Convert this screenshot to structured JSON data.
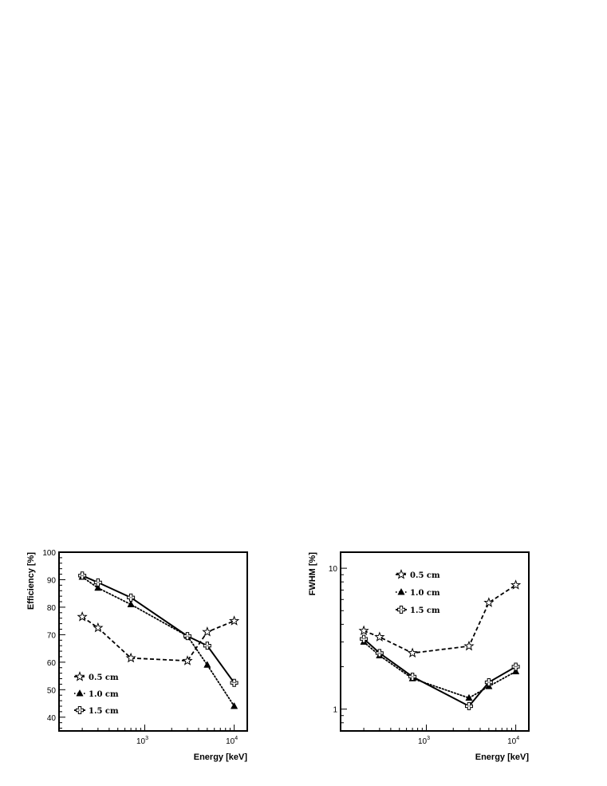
{
  "chart_data": [
    {
      "type": "line",
      "id": "efficiency",
      "xlabel": "Energy [keV]",
      "ylabel": "Efficiency [%]",
      "xscale": "log",
      "yscale": "linear",
      "xlim": [
        110,
        14000
      ],
      "ylim": [
        35,
        100
      ],
      "xticks": [
        {
          "value": 1000,
          "base": "10",
          "exp": "3"
        },
        {
          "value": 10000,
          "base": "10",
          "exp": "4"
        }
      ],
      "yticks": [
        40,
        50,
        60,
        70,
        80,
        90,
        100
      ],
      "legend_position": "bottom-left",
      "series": [
        {
          "name": "0.5 cm",
          "marker": "star-open",
          "dash": "dashed",
          "x": [
            200,
            300,
            700,
            3000,
            5000,
            10000
          ],
          "y": [
            76.5,
            72.5,
            61.5,
            60.5,
            71,
            75
          ]
        },
        {
          "name": "1.0 cm",
          "marker": "triangle-filled",
          "dash": "dotted",
          "x": [
            200,
            300,
            700,
            3000,
            5000,
            10000
          ],
          "y": [
            91,
            87,
            81,
            69.5,
            59,
            44
          ]
        },
        {
          "name": "1.5 cm",
          "marker": "cross-open",
          "dash": "solid",
          "x": [
            200,
            300,
            700,
            3000,
            5000,
            10000
          ],
          "y": [
            91.5,
            89,
            83.5,
            69.5,
            66,
            52.5
          ]
        }
      ]
    },
    {
      "type": "line",
      "id": "fwhm",
      "xlabel": "Energy [keV]",
      "ylabel": "FWHM [%]",
      "xscale": "log",
      "yscale": "log",
      "xlim": [
        110,
        14000
      ],
      "ylim": [
        0.7,
        13
      ],
      "xticks": [
        {
          "value": 1000,
          "base": "10",
          "exp": "3"
        },
        {
          "value": 10000,
          "base": "10",
          "exp": "4"
        }
      ],
      "yticks": [
        {
          "value": 1,
          "label": "1"
        },
        {
          "value": 10,
          "label": "10"
        }
      ],
      "legend_position": "top-left",
      "series": [
        {
          "name": "0.5 cm",
          "marker": "star-open",
          "dash": "dashed",
          "x": [
            200,
            300,
            700,
            3000,
            5000,
            10000
          ],
          "y": [
            3.6,
            3.25,
            2.5,
            2.8,
            5.7,
            7.6
          ]
        },
        {
          "name": "1.0 cm",
          "marker": "triangle-filled",
          "dash": "dotted",
          "x": [
            200,
            300,
            700,
            3000,
            5000,
            10000
          ],
          "y": [
            3.0,
            2.4,
            1.65,
            1.2,
            1.45,
            1.85
          ]
        },
        {
          "name": "1.5 cm",
          "marker": "cross-open",
          "dash": "solid",
          "x": [
            200,
            300,
            700,
            3000,
            5000,
            10000
          ],
          "y": [
            3.15,
            2.5,
            1.7,
            1.05,
            1.55,
            2.0
          ]
        }
      ]
    }
  ]
}
